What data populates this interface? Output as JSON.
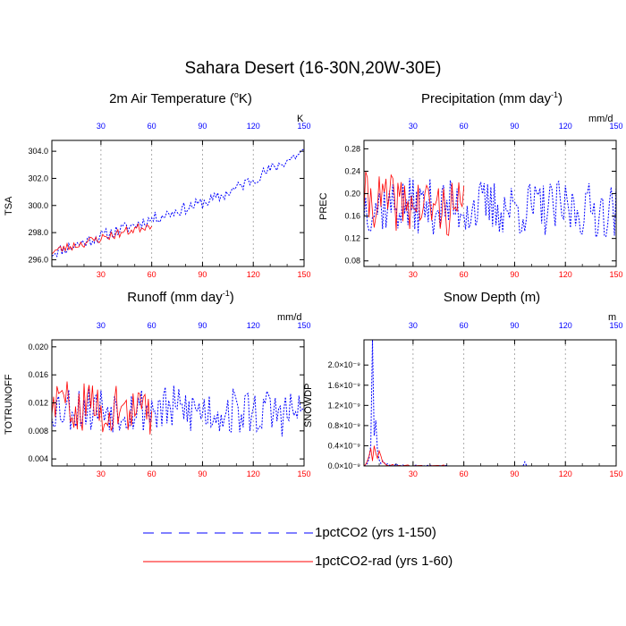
{
  "title": "Sahara Desert (16-30N,20W-30E)",
  "colors": {
    "series_1": "#0000ff",
    "series_2": "#ff0000",
    "bottom_ticks": "#ff0000",
    "top_ticks": "#0000ff"
  },
  "legend": [
    {
      "name": "1pctCO2 (yrs 1-150)",
      "color": "#0000ff",
      "style": "dashed"
    },
    {
      "name": "1pctCO2-rad (yrs 1-60)",
      "color": "#ff0000",
      "style": "solid"
    }
  ],
  "panel_labels": {
    "tsa": {
      "title_main": "2m Air Temperature (",
      "title_sup": "o",
      "title_end": "K)",
      "unit": "K",
      "ylabel": "TSA"
    },
    "prec": {
      "title_main": "Precipitation (mm day",
      "title_sup": "-1",
      "title_end": ")",
      "unit": "mm/d",
      "ylabel": "PREC"
    },
    "runoff": {
      "title_main": "Runoff (mm day",
      "title_sup": "-1",
      "title_end": ")",
      "unit": "mm/d",
      "ylabel": "TOTRUNOFF"
    },
    "snow": {
      "title_main": "Snow Depth (m)",
      "title_sup": "",
      "title_end": "",
      "unit": "m",
      "ylabel": "SNOWDP"
    }
  },
  "chart_data": [
    {
      "id": "tsa",
      "type": "line",
      "ylabel": "TSA",
      "x_range": [
        1,
        150
      ],
      "ylim": [
        295.5,
        304.8
      ],
      "x_ticks": [
        30,
        60,
        90,
        120,
        150
      ],
      "y_ticks": [
        296.0,
        298.0,
        300.0,
        302.0,
        304.0
      ],
      "y_tick_labels": [
        "296.0",
        "298.0",
        "300.0",
        "302.0",
        "304.0"
      ],
      "series": [
        {
          "name": "1pctCO2 (yrs 1-150)",
          "trend": [
            [
              1,
              296.5
            ],
            [
              60,
              299.0
            ],
            [
              100,
              300.6
            ],
            [
              150,
              304.0
            ]
          ],
          "noise": 0.45,
          "seed": 11,
          "years": 150
        },
        {
          "name": "1pctCO2-rad (yrs 1-60)",
          "trend": [
            [
              1,
              296.6
            ],
            [
              60,
              298.6
            ]
          ],
          "noise": 0.35,
          "seed": 23,
          "years": 60
        }
      ]
    },
    {
      "id": "prec",
      "type": "line",
      "ylabel": "PREC",
      "x_range": [
        1,
        150
      ],
      "ylim": [
        0.07,
        0.295
      ],
      "x_ticks": [
        30,
        60,
        90,
        120,
        150
      ],
      "y_ticks": [
        0.08,
        0.12,
        0.16,
        0.2,
        0.24,
        0.28
      ],
      "y_tick_labels": [
        "0.08",
        "0.12",
        "0.16",
        "0.20",
        "0.24",
        "0.28"
      ],
      "series": [
        {
          "name": "1pctCO2 (yrs 1-150)",
          "trend": [
            [
              1,
              0.18
            ],
            [
              150,
              0.17
            ]
          ],
          "noise": 0.05,
          "seed": 37,
          "years": 150
        },
        {
          "name": "1pctCO2-rad (yrs 1-60)",
          "trend": [
            [
              1,
              0.19
            ],
            [
              60,
              0.17
            ]
          ],
          "noise": 0.05,
          "seed": 41,
          "years": 60
        }
      ]
    },
    {
      "id": "runoff",
      "type": "line",
      "ylabel": "TOTRUNOFF",
      "x_range": [
        1,
        150
      ],
      "ylim": [
        0.003,
        0.021
      ],
      "x_ticks": [
        30,
        60,
        90,
        120,
        150
      ],
      "y_ticks": [
        0.004,
        0.008,
        0.012,
        0.016,
        0.02
      ],
      "y_tick_labels": [
        "0.004",
        "0.008",
        "0.012",
        "0.016",
        "0.020"
      ],
      "series": [
        {
          "name": "1pctCO2 (yrs 1-150)",
          "trend": [
            [
              1,
              0.0115
            ],
            [
              150,
              0.0105
            ]
          ],
          "noise": 0.0035,
          "seed": 53,
          "years": 150
        },
        {
          "name": "1pctCO2-rad (yrs 1-60)",
          "trend": [
            [
              1,
              0.012
            ],
            [
              60,
              0.0105
            ]
          ],
          "noise": 0.0035,
          "seed": 59,
          "years": 60
        }
      ]
    },
    {
      "id": "snow",
      "type": "line",
      "ylabel": "SNOWDP",
      "x_range": [
        1,
        150
      ],
      "ylim": [
        0,
        2.5e-09
      ],
      "x_ticks": [
        30,
        60,
        90,
        120,
        150
      ],
      "y_ticks": [
        0,
        4e-10,
        8e-10,
        1.2e-09,
        1.6e-09,
        2e-09
      ],
      "y_tick_labels": [
        "0.0×10⁻⁹",
        "0.4×10⁻⁹",
        "0.8×10⁻⁹",
        "1.2×10⁻⁹",
        "1.6×10⁻⁹",
        "2.0×10⁻⁹"
      ],
      "series": [
        {
          "name": "1pctCO2 (yrs 1-150)",
          "points": [
            [
              1,
              0
            ],
            [
              2,
              2e-11
            ],
            [
              3,
              5e-11
            ],
            [
              4,
              1.5e-10
            ],
            [
              5,
              4e-10
            ],
            [
              6,
              2.5e-09
            ],
            [
              7,
              6e-10
            ],
            [
              8,
              9e-10
            ],
            [
              9,
              3e-10
            ],
            [
              10,
              1.2e-10
            ],
            [
              11,
              5e-11
            ],
            [
              12,
              1e-10
            ],
            [
              13,
              6e-11
            ],
            [
              14,
              3e-11
            ],
            [
              15,
              4e-11
            ],
            [
              16,
              1e-11
            ],
            [
              17,
              2e-11
            ],
            [
              18,
              0
            ],
            [
              19,
              1e-11
            ],
            [
              20,
              4e-11
            ],
            [
              21,
              1e-11
            ],
            [
              22,
              0
            ],
            [
              24,
              2e-11
            ],
            [
              25,
              0
            ],
            [
              27,
              1e-11
            ],
            [
              28,
              0
            ],
            [
              30,
              0
            ],
            [
              32,
              2e-11
            ],
            [
              33,
              0
            ],
            [
              36,
              1e-11
            ],
            [
              37,
              0
            ],
            [
              40,
              2e-11
            ],
            [
              41,
              0
            ],
            [
              50,
              1e-11
            ],
            [
              51,
              0
            ],
            [
              95,
              0
            ],
            [
              96,
              8e-11
            ],
            [
              97,
              1e-11
            ],
            [
              98,
              0
            ],
            [
              150,
              0
            ]
          ]
        },
        {
          "name": "1pctCO2-rad (yrs 1-60)",
          "points": [
            [
              1,
              0
            ],
            [
              2,
              3e-11
            ],
            [
              3,
              1e-10
            ],
            [
              4,
              2e-10
            ],
            [
              5,
              3.5e-10
            ],
            [
              6,
              1e-10
            ],
            [
              7,
              4e-10
            ],
            [
              8,
              2.5e-10
            ],
            [
              9,
              1.5e-10
            ],
            [
              10,
              3e-10
            ],
            [
              11,
              2e-10
            ],
            [
              12,
              8e-11
            ],
            [
              13,
              6e-11
            ],
            [
              14,
              2e-11
            ],
            [
              15,
              1e-11
            ],
            [
              16,
              0
            ],
            [
              18,
              3e-11
            ],
            [
              19,
              0
            ],
            [
              22,
              1e-11
            ],
            [
              23,
              0
            ],
            [
              27,
              2e-11
            ],
            [
              28,
              0
            ],
            [
              35,
              1e-11
            ],
            [
              36,
              0
            ],
            [
              45,
              1e-11
            ],
            [
              46,
              0
            ],
            [
              48,
              2e-11
            ],
            [
              49,
              0
            ],
            [
              60,
              0
            ]
          ]
        }
      ]
    }
  ]
}
